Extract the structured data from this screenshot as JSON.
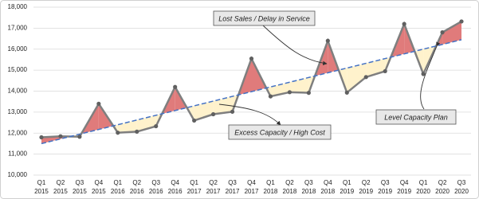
{
  "chart_data": {
    "type": "line",
    "categories": [
      [
        "Q1",
        "2015"
      ],
      [
        "Q2",
        "2015"
      ],
      [
        "Q3",
        "2015"
      ],
      [
        "Q4",
        "2015"
      ],
      [
        "Q1",
        "2016"
      ],
      [
        "Q2",
        "2016"
      ],
      [
        "Q3",
        "2016"
      ],
      [
        "Q4",
        "2016"
      ],
      [
        "Q1",
        "2017"
      ],
      [
        "Q2",
        "2017"
      ],
      [
        "Q3",
        "2017"
      ],
      [
        "Q4",
        "2017"
      ],
      [
        "Q1",
        "2018"
      ],
      [
        "Q2",
        "2018"
      ],
      [
        "Q3",
        "2018"
      ],
      [
        "Q4",
        "2018"
      ],
      [
        "Q1",
        "2019"
      ],
      [
        "Q2",
        "2019"
      ],
      [
        "Q3",
        "2019"
      ],
      [
        "Q4",
        "2019"
      ],
      [
        "Q1",
        "2020"
      ],
      [
        "Q2",
        "2020"
      ],
      [
        "Q3",
        "2020"
      ]
    ],
    "series": [
      {
        "color": "#7f7f7f",
        "values": [
          11800,
          11850,
          11830,
          13400,
          12020,
          12070,
          12330,
          14200,
          12600,
          12900,
          13020,
          15550,
          13750,
          13950,
          13920,
          16400,
          13930,
          14670,
          14950,
          17200,
          14820,
          16800,
          17320
        ]
      },
      {
        "color": "#4472c4",
        "dashed": true,
        "values": [
          11500,
          11725,
          11950,
          12175,
          12400,
          12625,
          12850,
          13075,
          13300,
          13525,
          13750,
          13975,
          14200,
          14425,
          14650,
          14875,
          15100,
          15325,
          15550,
          15775,
          16000,
          16225,
          16450
        ]
      }
    ],
    "above_color": "#e07b7b",
    "below_color": "#fff2cc",
    "ylim": [
      10000,
      18000
    ],
    "yticks": [
      {
        "value": 10000,
        "label": "10,000"
      },
      {
        "value": 11000,
        "label": "11,000"
      },
      {
        "value": 12000,
        "label": "12,000"
      },
      {
        "value": 13000,
        "label": "13,000"
      },
      {
        "value": 14000,
        "label": "14,000"
      },
      {
        "value": 15000,
        "label": "15,000"
      },
      {
        "value": 16000,
        "label": "16,000"
      },
      {
        "value": 17000,
        "label": "17,000"
      },
      {
        "value": 18000,
        "label": "18,000"
      }
    ],
    "grid": true,
    "annotations": [
      "Lost Sales / Delay in Service",
      "Excess Capacity / High Cost",
      "Level Capacity Plan"
    ]
  }
}
